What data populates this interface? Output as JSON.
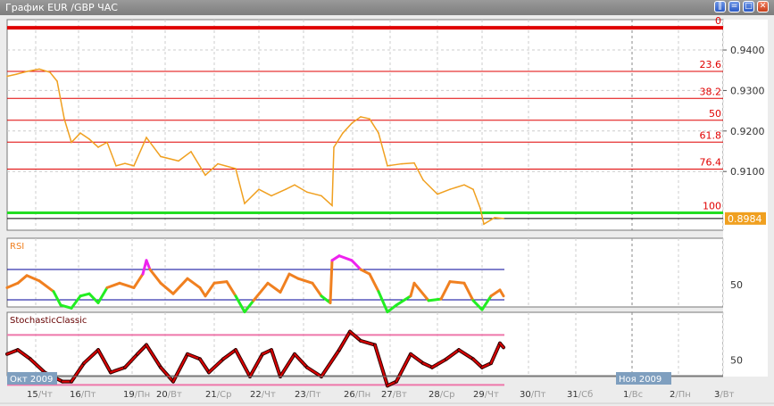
{
  "window": {
    "title": "График EUR /GBP  ЧАС",
    "buttons": [
      "pause",
      "minimize",
      "maximize",
      "close"
    ]
  },
  "colors": {
    "price": "#f0a020",
    "fib": "#e00000",
    "support": "#22dd22",
    "rsi": "#f08020",
    "rsi_low": "#22ee22",
    "rsi_high": "#ee22ee",
    "stoch": "#dd0000",
    "stoch_band": "#ee77aa",
    "rsi_band": "#000099",
    "price_tag": "#f0a020"
  },
  "chart_data": {
    "type": "line",
    "symbol": "EUR /GBP",
    "timeframe": "ЧАС",
    "price_axis": {
      "ticks": [
        "0.9400",
        "0.9300",
        "0.9200",
        "0.9100"
      ],
      "tick_values": [
        0.94,
        0.93,
        0.92,
        0.91
      ],
      "ylim": [
        0.8955,
        0.9475
      ]
    },
    "current_price": "0.8984",
    "fibonacci": {
      "high": 0.9455,
      "low": 0.8998,
      "levels": [
        {
          "label": "0",
          "value": 0
        },
        {
          "label": "23.6",
          "value": 23.6
        },
        {
          "label": "38.2",
          "value": 38.2
        },
        {
          "label": "50",
          "value": 50
        },
        {
          "label": "61.8",
          "value": 61.8
        },
        {
          "label": "76.4",
          "value": 76.4
        },
        {
          "label": "100",
          "value": 100
        }
      ]
    },
    "price_series": [
      [
        0,
        0.9335
      ],
      [
        5,
        0.934
      ],
      [
        11,
        0.9347
      ],
      [
        18,
        0.9353
      ],
      [
        24,
        0.9345
      ],
      [
        28,
        0.9323
      ],
      [
        32,
        0.923
      ],
      [
        36,
        0.9172
      ],
      [
        41,
        0.9195
      ],
      [
        46,
        0.918
      ],
      [
        51,
        0.916
      ],
      [
        56,
        0.9172
      ],
      [
        61,
        0.9114
      ],
      [
        66,
        0.912
      ],
      [
        71,
        0.9114
      ],
      [
        78,
        0.9184
      ],
      [
        86,
        0.9137
      ],
      [
        96,
        0.9126
      ],
      [
        103,
        0.9149
      ],
      [
        111,
        0.9091
      ],
      [
        118,
        0.9119
      ],
      [
        128,
        0.9107
      ],
      [
        133,
        0.9021
      ],
      [
        141,
        0.9056
      ],
      [
        148,
        0.904
      ],
      [
        156,
        0.9056
      ],
      [
        161,
        0.9067
      ],
      [
        168,
        0.9049
      ],
      [
        176,
        0.904
      ],
      [
        182,
        0.9016
      ],
      [
        183,
        0.916
      ],
      [
        188,
        0.9195
      ],
      [
        193,
        0.9219
      ],
      [
        198,
        0.9235
      ],
      [
        203,
        0.923
      ],
      [
        208,
        0.9195
      ],
      [
        213,
        0.9114
      ],
      [
        221,
        0.9119
      ],
      [
        228,
        0.9121
      ],
      [
        233,
        0.9079
      ],
      [
        241,
        0.9044
      ],
      [
        248,
        0.9056
      ],
      [
        256,
        0.9067
      ],
      [
        261,
        0.9056
      ],
      [
        265,
        0.9009
      ],
      [
        267,
        0.897
      ],
      [
        273,
        0.8986
      ],
      [
        278,
        0.8984
      ]
    ],
    "rsi": {
      "label": "RSI",
      "tick": "50",
      "levels": [
        70,
        30
      ],
      "series": [
        [
          0,
          46
        ],
        [
          6,
          52
        ],
        [
          11,
          62
        ],
        [
          18,
          55
        ],
        [
          26,
          41
        ],
        [
          30,
          23
        ],
        [
          36,
          19
        ],
        [
          41,
          35
        ],
        [
          46,
          38
        ],
        [
          51,
          26
        ],
        [
          56,
          46
        ],
        [
          63,
          52
        ],
        [
          71,
          46
        ],
        [
          76,
          64
        ],
        [
          78,
          82
        ],
        [
          80,
          70
        ],
        [
          86,
          52
        ],
        [
          93,
          38
        ],
        [
          101,
          58
        ],
        [
          108,
          46
        ],
        [
          111,
          35
        ],
        [
          116,
          52
        ],
        [
          123,
          54
        ],
        [
          128,
          35
        ],
        [
          133,
          14
        ],
        [
          138,
          29
        ],
        [
          146,
          52
        ],
        [
          153,
          40
        ],
        [
          158,
          64
        ],
        [
          163,
          58
        ],
        [
          171,
          52
        ],
        [
          176,
          35
        ],
        [
          181,
          26
        ],
        [
          182,
          82
        ],
        [
          186,
          88
        ],
        [
          193,
          82
        ],
        [
          198,
          70
        ],
        [
          203,
          64
        ],
        [
          208,
          41
        ],
        [
          213,
          14
        ],
        [
          218,
          23
        ],
        [
          226,
          35
        ],
        [
          228,
          52
        ],
        [
          236,
          29
        ],
        [
          243,
          31
        ],
        [
          248,
          54
        ],
        [
          256,
          52
        ],
        [
          261,
          29
        ],
        [
          266,
          17
        ],
        [
          271,
          35
        ],
        [
          276,
          43
        ],
        [
          278,
          35
        ]
      ]
    },
    "stochastic": {
      "label": "StochasticClassic",
      "tick": "50",
      "levels": [
        80,
        20
      ],
      "series": [
        [
          0,
          57
        ],
        [
          6,
          62
        ],
        [
          13,
          51
        ],
        [
          21,
          35
        ],
        [
          31,
          24
        ],
        [
          36,
          24
        ],
        [
          43,
          46
        ],
        [
          51,
          62
        ],
        [
          58,
          35
        ],
        [
          66,
          41
        ],
        [
          73,
          57
        ],
        [
          78,
          68
        ],
        [
          86,
          41
        ],
        [
          93,
          24
        ],
        [
          101,
          57
        ],
        [
          108,
          51
        ],
        [
          113,
          35
        ],
        [
          121,
          51
        ],
        [
          128,
          62
        ],
        [
          136,
          30
        ],
        [
          143,
          57
        ],
        [
          148,
          62
        ],
        [
          153,
          30
        ],
        [
          161,
          57
        ],
        [
          168,
          41
        ],
        [
          176,
          30
        ],
        [
          186,
          62
        ],
        [
          192,
          84
        ],
        [
          198,
          73
        ],
        [
          206,
          68
        ],
        [
          213,
          19
        ],
        [
          218,
          24
        ],
        [
          226,
          57
        ],
        [
          233,
          46
        ],
        [
          238,
          41
        ],
        [
          246,
          51
        ],
        [
          253,
          62
        ],
        [
          261,
          51
        ],
        [
          266,
          41
        ],
        [
          271,
          46
        ],
        [
          276,
          70
        ],
        [
          278,
          65
        ]
      ]
    },
    "x_axis": {
      "month_labels": [
        "Окт 2009",
        "Ноя 2009"
      ],
      "ticks": [
        {
          "day": "15",
          "wd": "Чт"
        },
        {
          "day": "16",
          "wd": "Пт"
        },
        {
          "day": "19",
          "wd": "Пн"
        },
        {
          "day": "20",
          "wd": "Вт"
        },
        {
          "day": "21",
          "wd": "Ср"
        },
        {
          "day": "22",
          "wd": "Чт"
        },
        {
          "day": "23",
          "wd": "Пт"
        },
        {
          "day": "26",
          "wd": "Пн"
        },
        {
          "day": "27",
          "wd": "Вт"
        },
        {
          "day": "28",
          "wd": "Ср"
        },
        {
          "day": "29",
          "wd": "Чт"
        },
        {
          "day": "30",
          "wd": "Пт"
        },
        {
          "day": "31",
          "wd": "Сб"
        },
        {
          "day": "1",
          "wd": "Вс"
        },
        {
          "day": "2",
          "wd": "Пн"
        },
        {
          "day": "3",
          "wd": "Вт"
        }
      ]
    }
  }
}
